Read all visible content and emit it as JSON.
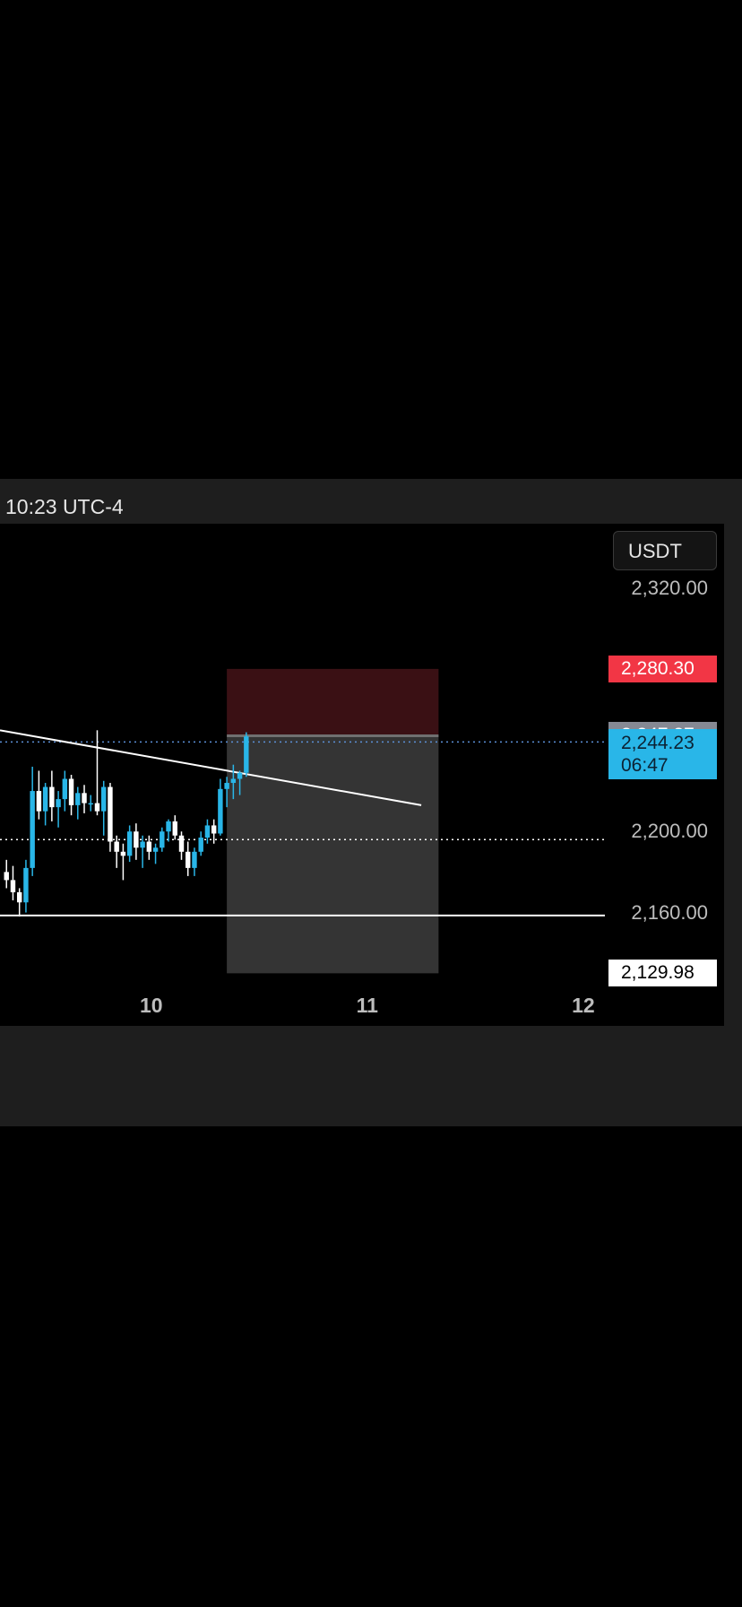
{
  "header": {
    "time_label": "10:23 UTC-4"
  },
  "currency": {
    "label": "USDT"
  },
  "chart_data": {
    "type": "candlestick",
    "quote_currency": "USDT",
    "x_axis": {
      "ticks": [
        "10",
        "11",
        "12"
      ],
      "range": [
        9.3,
        12.1
      ]
    },
    "y_axis": {
      "ticks": [
        "2,320.00",
        "2,200.00",
        "2,160.00"
      ],
      "tick_values": [
        2320,
        2200,
        2160
      ],
      "range": [
        2104,
        2352
      ]
    },
    "badges": {
      "stop": "2,280.30",
      "entry": "2,247.27",
      "current_price": "2,244.23",
      "countdown": "06:47",
      "target": "2,129.98"
    },
    "levels": {
      "stop": 2280.3,
      "entry": 2247.27,
      "current": 2244.23,
      "target": 2129.98,
      "dotted_level": 2196,
      "support_line": 2158.5
    },
    "trendline": {
      "start": [
        9.3,
        2250
      ],
      "end": [
        11.25,
        2213
      ]
    },
    "position_box": {
      "x_start": 10.35,
      "x_end": 11.33,
      "stop": 2280.3,
      "entry": 2247.27,
      "target": 2129.98
    },
    "candles": [
      {
        "x": 9.33,
        "o": 2180,
        "h": 2186,
        "l": 2172,
        "c": 2176
      },
      {
        "x": 9.36,
        "o": 2176,
        "h": 2183,
        "l": 2166,
        "c": 2170
      },
      {
        "x": 9.39,
        "o": 2170,
        "h": 2172,
        "l": 2158,
        "c": 2165
      },
      {
        "x": 9.42,
        "o": 2165,
        "h": 2186,
        "l": 2160,
        "c": 2182
      },
      {
        "x": 9.45,
        "o": 2182,
        "h": 2232,
        "l": 2178,
        "c": 2220
      },
      {
        "x": 9.48,
        "o": 2220,
        "h": 2230,
        "l": 2206,
        "c": 2210
      },
      {
        "x": 9.51,
        "o": 2210,
        "h": 2224,
        "l": 2203,
        "c": 2222
      },
      {
        "x": 9.54,
        "o": 2222,
        "h": 2230,
        "l": 2205,
        "c": 2212
      },
      {
        "x": 9.57,
        "o": 2212,
        "h": 2220,
        "l": 2202,
        "c": 2216
      },
      {
        "x": 9.6,
        "o": 2216,
        "h": 2230,
        "l": 2210,
        "c": 2226
      },
      {
        "x": 9.63,
        "o": 2226,
        "h": 2228,
        "l": 2208,
        "c": 2213
      },
      {
        "x": 9.66,
        "o": 2213,
        "h": 2222,
        "l": 2206,
        "c": 2219
      },
      {
        "x": 9.69,
        "o": 2219,
        "h": 2223,
        "l": 2209,
        "c": 2214
      },
      {
        "x": 9.72,
        "o": 2214,
        "h": 2218,
        "l": 2210,
        "c": 2214
      },
      {
        "x": 9.75,
        "o": 2214,
        "h": 2250,
        "l": 2208,
        "c": 2210
      },
      {
        "x": 9.78,
        "o": 2210,
        "h": 2225,
        "l": 2198,
        "c": 2222
      },
      {
        "x": 9.81,
        "o": 2222,
        "h": 2224,
        "l": 2190,
        "c": 2195
      },
      {
        "x": 9.84,
        "o": 2195,
        "h": 2198,
        "l": 2182,
        "c": 2190
      },
      {
        "x": 9.87,
        "o": 2190,
        "h": 2194,
        "l": 2176,
        "c": 2188
      },
      {
        "x": 9.9,
        "o": 2188,
        "h": 2203,
        "l": 2185,
        "c": 2200
      },
      {
        "x": 9.93,
        "o": 2200,
        "h": 2204,
        "l": 2186,
        "c": 2192
      },
      {
        "x": 9.96,
        "o": 2192,
        "h": 2198,
        "l": 2182,
        "c": 2195
      },
      {
        "x": 9.99,
        "o": 2195,
        "h": 2198,
        "l": 2186,
        "c": 2190
      },
      {
        "x": 10.02,
        "o": 2190,
        "h": 2194,
        "l": 2184,
        "c": 2192
      },
      {
        "x": 10.05,
        "o": 2192,
        "h": 2202,
        "l": 2190,
        "c": 2200
      },
      {
        "x": 10.08,
        "o": 2200,
        "h": 2206,
        "l": 2195,
        "c": 2205
      },
      {
        "x": 10.11,
        "o": 2205,
        "h": 2208,
        "l": 2196,
        "c": 2198
      },
      {
        "x": 10.14,
        "o": 2198,
        "h": 2200,
        "l": 2186,
        "c": 2190
      },
      {
        "x": 10.17,
        "o": 2190,
        "h": 2195,
        "l": 2178,
        "c": 2182
      },
      {
        "x": 10.2,
        "o": 2182,
        "h": 2192,
        "l": 2178,
        "c": 2190
      },
      {
        "x": 10.23,
        "o": 2190,
        "h": 2200,
        "l": 2188,
        "c": 2197
      },
      {
        "x": 10.26,
        "o": 2197,
        "h": 2206,
        "l": 2194,
        "c": 2203
      },
      {
        "x": 10.29,
        "o": 2203,
        "h": 2206,
        "l": 2194,
        "c": 2199
      },
      {
        "x": 10.32,
        "o": 2199,
        "h": 2226,
        "l": 2198,
        "c": 2221
      },
      {
        "x": 10.35,
        "o": 2221,
        "h": 2227,
        "l": 2212,
        "c": 2224
      },
      {
        "x": 10.38,
        "o": 2224,
        "h": 2233,
        "l": 2216,
        "c": 2226
      },
      {
        "x": 10.41,
        "o": 2226,
        "h": 2230,
        "l": 2218,
        "c": 2229
      },
      {
        "x": 10.44,
        "o": 2229,
        "h": 2249,
        "l": 2227,
        "c": 2247
      }
    ]
  }
}
